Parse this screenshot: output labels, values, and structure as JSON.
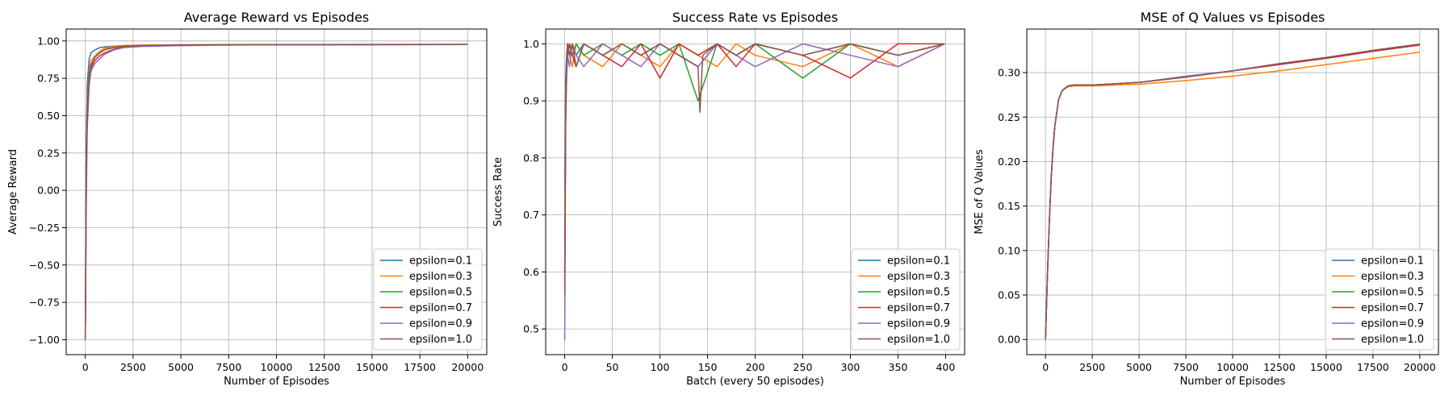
{
  "chart_data": [
    {
      "type": "line",
      "title": "Average Reward vs Episodes",
      "xlabel": "Number of Episodes",
      "ylabel": "Average Reward",
      "xlim": [
        -1000,
        21000
      ],
      "ylim": [
        -1.1,
        1.08
      ],
      "xticks": [
        0,
        2500,
        5000,
        7500,
        10000,
        12500,
        15000,
        17500,
        20000
      ],
      "yticks": [
        -1.0,
        -0.75,
        -0.5,
        -0.25,
        0.0,
        0.25,
        0.5,
        0.75,
        1.0
      ],
      "xtick_labels": [
        "0",
        "2500",
        "5000",
        "7500",
        "10000",
        "12500",
        "15000",
        "17500",
        "20000"
      ],
      "ytick_labels": [
        "−1.00",
        "−0.75",
        "−0.50",
        "−0.25",
        "0.00",
        "0.25",
        "0.50",
        "0.75",
        "1.00"
      ],
      "grid": true,
      "legend": "lower-right",
      "series": [
        {
          "name": "epsilon=0.1",
          "x": [
            0,
            50,
            100,
            200,
            300,
            500,
            750,
            1000,
            1500,
            2000,
            3000,
            5000,
            7000,
            10000,
            15000,
            20000
          ],
          "y": [
            -1.0,
            0.35,
            0.7,
            0.88,
            0.92,
            0.94,
            0.955,
            0.96,
            0.965,
            0.968,
            0.97,
            0.972,
            0.974,
            0.975,
            0.976,
            0.977
          ]
        },
        {
          "name": "epsilon=0.3",
          "x": [
            0,
            50,
            100,
            200,
            300,
            500,
            750,
            1000,
            1500,
            2000,
            3000,
            5000,
            7000,
            10000,
            15000,
            20000
          ],
          "y": [
            -1.0,
            0.2,
            0.6,
            0.8,
            0.87,
            0.9,
            0.93,
            0.95,
            0.965,
            0.97,
            0.973,
            0.975,
            0.976,
            0.976,
            0.977,
            0.977
          ]
        },
        {
          "name": "epsilon=0.5",
          "x": [
            0,
            50,
            100,
            200,
            300,
            500,
            750,
            1000,
            1500,
            2000,
            3000,
            5000,
            7000,
            10000,
            15000,
            20000
          ],
          "y": [
            -1.0,
            0.1,
            0.55,
            0.78,
            0.84,
            0.89,
            0.92,
            0.94,
            0.955,
            0.963,
            0.968,
            0.972,
            0.974,
            0.975,
            0.976,
            0.977
          ]
        },
        {
          "name": "epsilon=0.7",
          "x": [
            0,
            50,
            100,
            200,
            300,
            500,
            750,
            1000,
            1500,
            2000,
            3000,
            5000,
            7000,
            10000,
            15000,
            20000
          ],
          "y": [
            -1.0,
            0.0,
            0.5,
            0.75,
            0.82,
            0.87,
            0.9,
            0.92,
            0.945,
            0.957,
            0.965,
            0.97,
            0.973,
            0.974,
            0.975,
            0.976
          ]
        },
        {
          "name": "epsilon=0.9",
          "x": [
            0,
            50,
            100,
            200,
            300,
            500,
            750,
            1000,
            1500,
            2000,
            3000,
            5000,
            7000,
            10000,
            15000,
            20000
          ],
          "y": [
            -1.0,
            -0.1,
            0.4,
            0.7,
            0.8,
            0.85,
            0.88,
            0.91,
            0.94,
            0.955,
            0.963,
            0.969,
            0.972,
            0.974,
            0.975,
            0.976
          ]
        },
        {
          "name": "epsilon=1.0",
          "x": [
            0,
            50,
            100,
            200,
            300,
            500,
            750,
            1000,
            1500,
            2000,
            3000,
            5000,
            7000,
            10000,
            15000,
            20000
          ],
          "y": [
            -1.0,
            0.15,
            0.5,
            0.76,
            0.84,
            0.89,
            0.92,
            0.94,
            0.958,
            0.965,
            0.97,
            0.973,
            0.975,
            0.976,
            0.977,
            0.977
          ]
        }
      ]
    },
    {
      "type": "line",
      "title": "Success Rate vs Episodes",
      "xlabel": "Batch (every 50 episodes)",
      "ylabel": "Success Rate",
      "xlim": [
        -20,
        420
      ],
      "ylim": [
        0.455,
        1.026
      ],
      "xticks": [
        0,
        50,
        100,
        150,
        200,
        250,
        300,
        350,
        400
      ],
      "yticks": [
        0.5,
        0.6,
        0.7,
        0.8,
        0.9,
        1.0
      ],
      "xtick_labels": [
        "0",
        "50",
        "100",
        "150",
        "200",
        "250",
        "300",
        "350",
        "400"
      ],
      "ytick_labels": [
        "0.5",
        "0.6",
        "0.7",
        "0.8",
        "0.9",
        "1.0"
      ],
      "grid": true,
      "legend": "lower-right",
      "series": [
        {
          "name": "epsilon=0.1",
          "x": [
            0,
            1,
            2,
            3,
            5,
            8,
            12,
            20,
            40,
            60,
            80,
            100,
            120,
            140,
            160,
            180,
            200,
            250,
            300,
            350,
            399
          ],
          "y": [
            0.74,
            0.94,
            0.98,
            1.0,
            0.98,
            1.0,
            0.98,
            1.0,
            0.98,
            1.0,
            0.98,
            1.0,
            0.98,
            0.96,
            1.0,
            0.98,
            1.0,
            0.98,
            1.0,
            0.98,
            1.0
          ]
        },
        {
          "name": "epsilon=0.3",
          "x": [
            0,
            1,
            2,
            3,
            5,
            8,
            12,
            20,
            40,
            60,
            80,
            100,
            120,
            140,
            160,
            180,
            200,
            250,
            300,
            350,
            399
          ],
          "y": [
            0.66,
            0.92,
            0.96,
            1.0,
            0.98,
            0.96,
            1.0,
            0.98,
            0.96,
            1.0,
            0.98,
            0.96,
            1.0,
            0.98,
            0.96,
            1.0,
            0.98,
            0.96,
            1.0,
            0.96,
            1.0
          ]
        },
        {
          "name": "epsilon=0.5",
          "x": [
            0,
            1,
            2,
            3,
            5,
            8,
            12,
            20,
            40,
            60,
            80,
            100,
            120,
            140,
            160,
            180,
            200,
            250,
            300,
            350,
            399
          ],
          "y": [
            0.6,
            0.9,
            0.96,
            0.98,
            1.0,
            0.98,
            1.0,
            0.98,
            1.0,
            0.98,
            1.0,
            0.98,
            1.0,
            0.9,
            1.0,
            0.98,
            1.0,
            0.94,
            1.0,
            0.98,
            1.0
          ]
        },
        {
          "name": "epsilon=0.7",
          "x": [
            0,
            1,
            2,
            3,
            5,
            8,
            12,
            20,
            40,
            60,
            80,
            100,
            120,
            140,
            160,
            180,
            200,
            250,
            300,
            350,
            399
          ],
          "y": [
            0.58,
            0.88,
            0.96,
            0.98,
            1.0,
            0.98,
            0.96,
            1.0,
            0.98,
            0.96,
            1.0,
            0.94,
            1.0,
            0.98,
            1.0,
            0.96,
            1.0,
            0.98,
            0.94,
            1.0,
            1.0
          ]
        },
        {
          "name": "epsilon=0.9",
          "x": [
            0,
            1,
            2,
            3,
            5,
            8,
            12,
            20,
            40,
            60,
            80,
            100,
            120,
            140,
            160,
            180,
            200,
            250,
            300,
            350,
            399
          ],
          "y": [
            0.48,
            0.86,
            0.94,
            0.98,
            0.96,
            1.0,
            0.98,
            0.96,
            1.0,
            0.98,
            0.96,
            1.0,
            0.98,
            0.96,
            1.0,
            0.98,
            0.96,
            1.0,
            0.98,
            0.96,
            1.0
          ]
        },
        {
          "name": "epsilon=1.0",
          "x": [
            0,
            1,
            2,
            3,
            5,
            8,
            12,
            20,
            40,
            60,
            80,
            100,
            120,
            140,
            142,
            145,
            160,
            180,
            200,
            250,
            300,
            350,
            399
          ],
          "y": [
            0.56,
            0.86,
            0.96,
            1.0,
            0.98,
            1.0,
            0.96,
            1.0,
            0.98,
            1.0,
            0.98,
            1.0,
            0.98,
            0.96,
            0.88,
            0.98,
            1.0,
            0.98,
            1.0,
            0.98,
            1.0,
            0.98,
            1.0
          ]
        }
      ]
    },
    {
      "type": "line",
      "title": "MSE of Q Values vs Episodes",
      "xlabel": "Number of Episodes",
      "ylabel": "MSE of Q Values",
      "xlim": [
        -1000,
        21000
      ],
      "ylim": [
        -0.017,
        0.349
      ],
      "xticks": [
        0,
        2500,
        5000,
        7500,
        10000,
        12500,
        15000,
        17500,
        20000
      ],
      "yticks": [
        0.0,
        0.05,
        0.1,
        0.15,
        0.2,
        0.25,
        0.3
      ],
      "xtick_labels": [
        "0",
        "2500",
        "5000",
        "7500",
        "10000",
        "12500",
        "15000",
        "17500",
        "20000"
      ],
      "ytick_labels": [
        "0.00",
        "0.05",
        "0.10",
        "0.15",
        "0.20",
        "0.25",
        "0.30"
      ],
      "grid": true,
      "legend": "lower-right",
      "series": [
        {
          "name": "epsilon=0.1",
          "x": [
            0,
            100,
            200,
            300,
            400,
            500,
            700,
            900,
            1200,
            1500,
            2500,
            5000,
            7500,
            10000,
            12500,
            15000,
            17500,
            20000
          ],
          "y": [
            0.0,
            0.07,
            0.13,
            0.18,
            0.215,
            0.24,
            0.27,
            0.28,
            0.285,
            0.286,
            0.286,
            0.289,
            0.295,
            0.302,
            0.31,
            0.316,
            0.324,
            0.331
          ]
        },
        {
          "name": "epsilon=0.3",
          "x": [
            0,
            100,
            200,
            300,
            400,
            500,
            700,
            900,
            1200,
            1500,
            2500,
            5000,
            7500,
            10000,
            12500,
            15000,
            17500,
            20000
          ],
          "y": [
            0.0,
            0.07,
            0.13,
            0.18,
            0.215,
            0.24,
            0.27,
            0.28,
            0.284,
            0.285,
            0.285,
            0.287,
            0.291,
            0.296,
            0.302,
            0.309,
            0.316,
            0.323
          ]
        },
        {
          "name": "epsilon=0.5",
          "x": [
            0,
            100,
            200,
            300,
            400,
            500,
            700,
            900,
            1200,
            1500,
            2500,
            5000,
            7500,
            10000,
            12500,
            15000,
            17500,
            20000
          ],
          "y": [
            0.0,
            0.07,
            0.13,
            0.18,
            0.215,
            0.24,
            0.27,
            0.28,
            0.285,
            0.286,
            0.286,
            0.289,
            0.295,
            0.302,
            0.31,
            0.317,
            0.325,
            0.332
          ]
        },
        {
          "name": "epsilon=0.7",
          "x": [
            0,
            100,
            200,
            300,
            400,
            500,
            700,
            900,
            1200,
            1500,
            2500,
            5000,
            7500,
            10000,
            12500,
            15000,
            17500,
            20000
          ],
          "y": [
            0.0,
            0.07,
            0.13,
            0.18,
            0.215,
            0.24,
            0.27,
            0.28,
            0.285,
            0.286,
            0.286,
            0.289,
            0.295,
            0.302,
            0.309,
            0.316,
            0.324,
            0.331
          ]
        },
        {
          "name": "epsilon=0.9",
          "x": [
            0,
            100,
            200,
            300,
            400,
            500,
            700,
            900,
            1200,
            1500,
            2500,
            5000,
            7500,
            10000,
            12500,
            15000,
            17500,
            20000
          ],
          "y": [
            0.0,
            0.07,
            0.13,
            0.18,
            0.215,
            0.24,
            0.27,
            0.28,
            0.285,
            0.286,
            0.286,
            0.289,
            0.296,
            0.302,
            0.31,
            0.317,
            0.325,
            0.332
          ]
        },
        {
          "name": "epsilon=1.0",
          "x": [
            0,
            100,
            200,
            300,
            400,
            500,
            700,
            900,
            1200,
            1500,
            2500,
            5000,
            7500,
            10000,
            12500,
            15000,
            17500,
            20000
          ],
          "y": [
            0.0,
            0.07,
            0.13,
            0.18,
            0.215,
            0.24,
            0.27,
            0.28,
            0.285,
            0.286,
            0.286,
            0.289,
            0.295,
            0.302,
            0.31,
            0.317,
            0.325,
            0.332
          ]
        }
      ]
    }
  ],
  "colors": {
    "series": [
      "#1f77b4",
      "#ff7f0e",
      "#2ca02c",
      "#d62728",
      "#9467bd",
      "#8c564b"
    ],
    "grid": "#b0b0b0",
    "axes": "#000000",
    "legend_border": "#cccccc"
  }
}
